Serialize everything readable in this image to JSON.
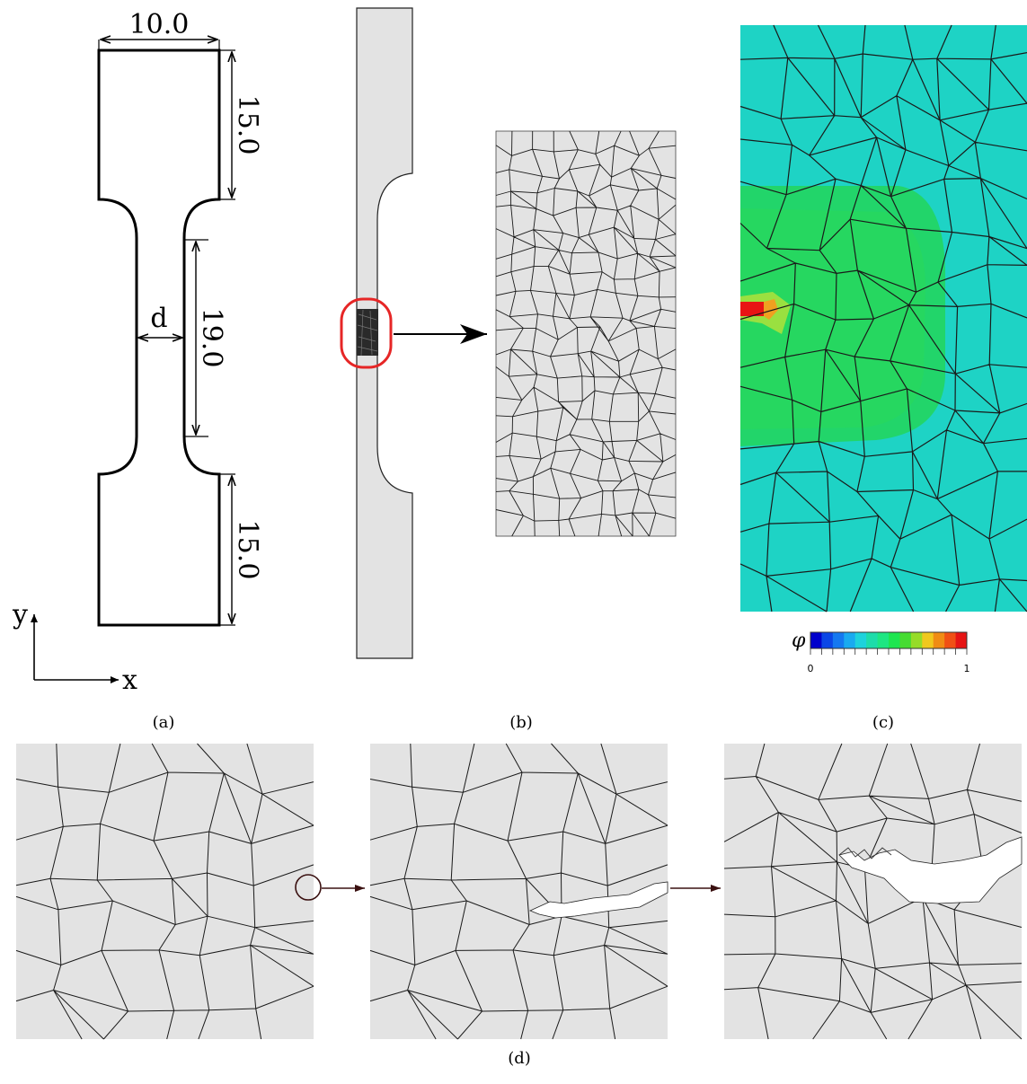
{
  "panels": {
    "a": {
      "label": "(a)",
      "dims": {
        "width": "10.0",
        "top_length": "15.0",
        "gauge_length": "19.0",
        "bottom_length": "15.0",
        "gauge_width": "d"
      },
      "axes": {
        "x": "x",
        "y": "y"
      }
    },
    "b": {
      "label": "(b)"
    },
    "c": {
      "label": "(c)",
      "colorbar": {
        "symbol": "φ",
        "min_label": "0",
        "max_label": "1",
        "colors": [
          "#0000cc",
          "#0a46e6",
          "#1478f0",
          "#19aaf0",
          "#1ed2dc",
          "#1edcaa",
          "#1ee682",
          "#1ee650",
          "#46dc32",
          "#96dc28",
          "#f0c81e",
          "#f08c14",
          "#f05014",
          "#e61414"
        ]
      },
      "field_colors": {
        "background": "#1ed3c5",
        "damage_zone": "#22d56a",
        "crack": "#e81414"
      }
    },
    "d": {
      "label": "(d)"
    }
  },
  "colors": {
    "grain_fill": "#e3e3e3",
    "grain_line": "#1a1a1a",
    "highlight": "#e62626",
    "arrow_dark": "#3a1010"
  }
}
